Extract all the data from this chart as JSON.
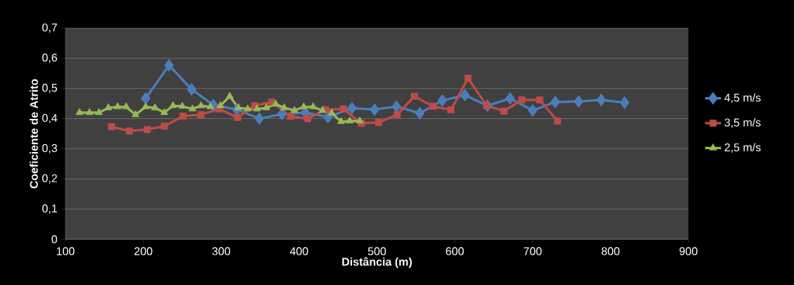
{
  "chart_data": {
    "type": "line",
    "xlabel": "Distância (m)",
    "ylabel": "Coeficiente de Atrito",
    "xlim": [
      100,
      900
    ],
    "xticks": [
      100,
      200,
      300,
      400,
      500,
      600,
      700,
      800,
      900
    ],
    "ylim": [
      0,
      0.7
    ],
    "yticks": [
      {
        "value": 0,
        "label": "0"
      },
      {
        "value": 0.1,
        "label": "0,1"
      },
      {
        "value": 0.2,
        "label": "0,2"
      },
      {
        "value": 0.3,
        "label": "0,3"
      },
      {
        "value": 0.4,
        "label": "0,4"
      },
      {
        "value": 0.5,
        "label": "0,5"
      },
      {
        "value": 0.6,
        "label": "0,6"
      },
      {
        "value": 0.7,
        "label": "0,7"
      }
    ],
    "grid": "y",
    "legend": "right",
    "line_style": "solid",
    "series": [
      {
        "name": "4,5 m/s",
        "color": "#4a7ebb",
        "marker": "diamond",
        "x": [
          203,
          233,
          262,
          290,
          320,
          349,
          378,
          408,
          437,
          468,
          497,
          525,
          555,
          584,
          613,
          642,
          671,
          700,
          729,
          759,
          788,
          818
        ],
        "values": [
          0.467,
          0.577,
          0.497,
          0.445,
          0.43,
          0.4,
          0.415,
          0.42,
          0.405,
          0.435,
          0.43,
          0.44,
          0.418,
          0.46,
          0.478,
          0.443,
          0.467,
          0.427,
          0.455,
          0.457,
          0.462,
          0.453
        ]
      },
      {
        "name": "3,5 m/s",
        "color": "#be4b48",
        "marker": "square",
        "x": [
          159,
          182,
          205,
          227,
          251,
          274,
          297,
          321,
          343,
          365,
          389,
          411,
          434,
          457,
          480,
          502,
          526,
          548,
          572,
          595,
          617,
          641,
          663,
          686,
          709,
          732
        ],
        "values": [
          0.373,
          0.359,
          0.364,
          0.375,
          0.408,
          0.413,
          0.432,
          0.404,
          0.443,
          0.455,
          0.408,
          0.4,
          0.43,
          0.432,
          0.385,
          0.387,
          0.413,
          0.474,
          0.441,
          0.429,
          0.534,
          0.443,
          0.425,
          0.462,
          0.462,
          0.392
        ]
      },
      {
        "name": "2,5 m/s",
        "color": "#98b954",
        "marker": "triangle",
        "x": [
          118,
          131,
          143,
          155,
          167,
          178,
          190,
          203,
          215,
          227,
          238,
          250,
          263,
          274,
          286,
          299,
          311,
          322,
          334,
          346,
          358,
          370,
          381,
          394,
          406,
          418,
          430,
          442,
          454,
          465,
          478
        ],
        "values": [
          0.42,
          0.42,
          0.42,
          0.436,
          0.439,
          0.439,
          0.413,
          0.439,
          0.436,
          0.42,
          0.443,
          0.441,
          0.432,
          0.443,
          0.439,
          0.443,
          0.474,
          0.436,
          0.432,
          0.432,
          0.436,
          0.448,
          0.436,
          0.427,
          0.439,
          0.439,
          0.427,
          0.418,
          0.39,
          0.392,
          0.392
        ]
      }
    ]
  }
}
